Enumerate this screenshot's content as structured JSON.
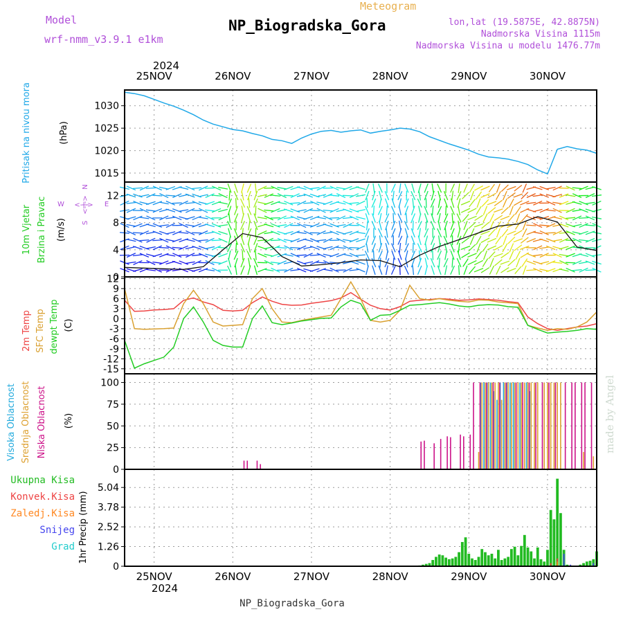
{
  "header": {
    "model_label": "Model",
    "model_name": "wrf-nmm_v3.9.1  e1km",
    "kind": "Meteogram",
    "station": "NP_Biogradska_Gora",
    "coords": "lon,lat (19.5875E, 42.8875N)",
    "elevation": "Nadmorska Visina 1115m",
    "model_elevation": "Nadmorska Visina u modelu 1476.77m",
    "watermark": "made by Angel",
    "footer_station": "NP_Biogradska_Gora"
  },
  "time_axis": {
    "year": "2024",
    "days": [
      "25NOV",
      "26NOV",
      "27NOV",
      "28NOV",
      "29NOV",
      "30NOV"
    ],
    "start": "2024-11-24 15:00",
    "end": "2024-11-30 15:00"
  },
  "colors": {
    "pressure": "#1fa8e8",
    "temp2m": "#ee4444",
    "sfc": "#d9a030",
    "dewpt": "#22cc22",
    "high_cloud": "#22aadd",
    "mid_cloud": "#dda030",
    "low_cloud": "#cc1188",
    "total_precip": "#22bb22",
    "conv_precip": "#ee4444",
    "freezing": "#ff8822",
    "snow": "#4444ee",
    "hail": "#22cccc"
  },
  "chart_data": [
    {
      "type": "line",
      "ylabel_title": "Pritisak na nivou mora",
      "ylabel_unit": "(hPa)",
      "ylim": [
        1013,
        1033.5
      ],
      "yticks": [
        1015,
        1020,
        1025,
        1030
      ],
      "grid": true,
      "x_hours_since_start": [
        0,
        3,
        6,
        9,
        12,
        15,
        18,
        21,
        24,
        27,
        30,
        33,
        36,
        39,
        42,
        45,
        48,
        51,
        54,
        57,
        60,
        63,
        66,
        69,
        72,
        75,
        78,
        81,
        84,
        87,
        90,
        93,
        96,
        99,
        102,
        105,
        108,
        111,
        114,
        117,
        120,
        123,
        126,
        129,
        132,
        135,
        138,
        141,
        144
      ],
      "series": [
        {
          "name": "",
          "values": [
            1033.0,
            1032.7,
            1032.2,
            1031.4,
            1030.6,
            1029.9,
            1029.0,
            1028.0,
            1026.8,
            1025.9,
            1025.3,
            1024.7,
            1024.4,
            1023.8,
            1023.3,
            1022.5,
            1022.2,
            1021.6,
            1022.8,
            1023.7,
            1024.3,
            1024.5,
            1024.1,
            1024.4,
            1024.6,
            1023.9,
            1024.3,
            1024.6,
            1025.0,
            1024.8,
            1024.2,
            1023.1,
            1022.3,
            1021.5,
            1020.8,
            1020.1,
            1019.2,
            1018.6,
            1018.4,
            1018.1,
            1017.6,
            1016.9,
            1015.7,
            1014.8,
            1020.3,
            1020.9,
            1020.4,
            1020.1,
            1019.4
          ]
        }
      ]
    },
    {
      "type": "line",
      "ylabel_title": "10m Vjetar Brzina i Pravac",
      "ylabel_unit": "(m/s)",
      "compass": [
        "N",
        "E",
        "S",
        "W"
      ],
      "ylim": [
        0,
        14
      ],
      "yticks": [
        0,
        4,
        8,
        12
      ],
      "grid": true,
      "x_hours_since_start": [
        0,
        6,
        12,
        18,
        24,
        30,
        36,
        42,
        48,
        54,
        60,
        66,
        72,
        78,
        84,
        90,
        96,
        102,
        108,
        114,
        120,
        126,
        132,
        138,
        144
      ],
      "series": [
        {
          "name": "",
          "values": [
            1.4,
            1.3,
            1.2,
            1.1,
            1.5,
            4.0,
            6.4,
            5.8,
            3.0,
            1.6,
            1.8,
            2.1,
            2.5,
            2.4,
            1.5,
            3.2,
            4.5,
            5.5,
            6.5,
            7.5,
            7.8,
            8.9,
            8.1,
            4.4,
            3.9
          ]
        }
      ],
      "wind_direction_regimes": [
        "E",
        "E",
        "E",
        "S",
        "W",
        "W",
        "W",
        "S",
        "S",
        "S",
        "SW",
        "SW",
        "E",
        "E"
      ]
    },
    {
      "type": "line",
      "ylabel_titles": [
        "2m Temp",
        "SFC Temp",
        "dewpt Temp"
      ],
      "ylabel_unit": "(C)",
      "ylim": [
        -16.5,
        12.5
      ],
      "yticks": [
        -15,
        -12,
        -9,
        -6,
        -3,
        0,
        3,
        6,
        9,
        12
      ],
      "grid": true,
      "x_hours_since_start": [
        0,
        3,
        6,
        9,
        12,
        15,
        18,
        21,
        24,
        27,
        30,
        33,
        36,
        39,
        42,
        45,
        48,
        51,
        54,
        57,
        60,
        63,
        66,
        69,
        72,
        75,
        78,
        81,
        84,
        87,
        90,
        93,
        96,
        99,
        102,
        105,
        108,
        111,
        114,
        117,
        120,
        123,
        126,
        129,
        132,
        135,
        138,
        141,
        144
      ],
      "series": [
        {
          "name": "2m Temp",
          "values": [
            5.5,
            2.2,
            2.3,
            2.6,
            2.7,
            3.0,
            5.5,
            6.2,
            5.0,
            4.2,
            2.5,
            2.3,
            2.5,
            4.8,
            6.5,
            5.2,
            4.3,
            4.0,
            4.1,
            4.6,
            5.0,
            5.4,
            6.2,
            7.8,
            5.8,
            4.0,
            3.0,
            2.6,
            3.6,
            5.2,
            5.5,
            5.7,
            6.0,
            5.8,
            5.5,
            5.6,
            5.9,
            5.7,
            5.5,
            5.1,
            4.8,
            0.5,
            -1.5,
            -3.0,
            -3.5,
            -3.0,
            -2.5,
            -2.2,
            -1.5
          ]
        },
        {
          "name": "SFC Temp",
          "values": [
            9.0,
            -3.0,
            -3.2,
            -3.1,
            -3.0,
            -2.8,
            4.5,
            8.5,
            4.5,
            -1.0,
            -2.2,
            -2.0,
            -1.8,
            6.0,
            9.0,
            3.0,
            -1.0,
            -1.2,
            -0.5,
            0.0,
            0.5,
            1.0,
            6.0,
            11.0,
            6.0,
            -0.5,
            -1.0,
            -0.5,
            2.5,
            10.0,
            6.0,
            5.5,
            6.0,
            5.5,
            5.2,
            5.0,
            5.6,
            5.5,
            5.0,
            4.8,
            4.5,
            -2.0,
            -2.8,
            -3.5,
            -3.0,
            -3.2,
            -2.5,
            -1.0,
            2.0
          ]
        },
        {
          "name": "dewpt Temp",
          "values": [
            -6.5,
            -14.8,
            -13.5,
            -12.5,
            -11.5,
            -8.5,
            0.0,
            3.5,
            -1.0,
            -6.5,
            -8.0,
            -8.5,
            -8.5,
            0.0,
            3.8,
            -1.2,
            -1.8,
            -1.3,
            -0.7,
            -0.3,
            0.1,
            0.2,
            3.5,
            5.5,
            4.5,
            -0.5,
            1.0,
            1.2,
            2.5,
            4.0,
            4.2,
            4.5,
            4.8,
            4.4,
            3.8,
            3.5,
            4.0,
            4.2,
            4.1,
            3.6,
            3.4,
            -2.0,
            -3.2,
            -4.3,
            -4.0,
            -3.8,
            -3.5,
            -3.0,
            -3.2
          ]
        }
      ]
    },
    {
      "type": "bar",
      "ylabel_titles": [
        "Visoka Oblacnost",
        "Srednja Oblacnost",
        "Niska Oblacnost"
      ],
      "ylabel_unit": "(%)",
      "ylim": [
        0,
        110
      ],
      "yticks": [
        0,
        25,
        50,
        75,
        100
      ],
      "grid": true,
      "series": [
        {
          "name": "Visoka Oblacnost",
          "x_hours_since_start": [
            109,
            110,
            111,
            112,
            113,
            114,
            115,
            116,
            117,
            118,
            119,
            121,
            123,
            124
          ],
          "values": [
            100,
            100,
            100,
            100,
            90,
            80,
            100,
            100,
            100,
            100,
            100,
            100,
            100,
            90
          ]
        },
        {
          "name": "Srednja Oblacnost",
          "x_hours_since_start": [
            108,
            109,
            110,
            111,
            112,
            113,
            114,
            115,
            116,
            117,
            118,
            119,
            120,
            121,
            122,
            123,
            124,
            125,
            126,
            128,
            129,
            130,
            131,
            132,
            133,
            140,
            143
          ],
          "values": [
            20,
            100,
            100,
            100,
            100,
            100,
            100,
            80,
            100,
            100,
            100,
            100,
            100,
            100,
            100,
            100,
            100,
            100,
            100,
            100,
            100,
            100,
            100,
            100,
            100,
            20,
            15
          ]
        },
        {
          "name": "Niska Oblacnost",
          "x_hours_since_start": [
            36,
            37,
            40,
            41,
            90,
            91,
            94,
            96,
            98,
            99,
            102,
            103,
            105,
            106,
            108,
            110,
            112,
            114,
            116,
            119,
            121,
            123,
            125,
            127,
            129,
            131,
            134,
            136,
            137,
            139,
            140,
            142
          ],
          "values": [
            10,
            10,
            10,
            6,
            32,
            33,
            30,
            35,
            38,
            37,
            40,
            38,
            40,
            100,
            100,
            100,
            100,
            100,
            100,
            100,
            100,
            100,
            100,
            100,
            100,
            100,
            100,
            100,
            100,
            100,
            100,
            100
          ]
        }
      ]
    },
    {
      "type": "bar",
      "ylabel_unit": "1hr Precip (mm)",
      "legend": [
        "Ukupna Kisa",
        "Konvek.Kisa",
        "Zaledj.Kisa",
        "Snijeg",
        "Grad"
      ],
      "ylim": [
        0,
        6.2
      ],
      "yticks": [
        0,
        1.26,
        2.52,
        3.78,
        5.04
      ],
      "ytick_labels": [
        "0",
        "1.26",
        "2.52",
        "3.78",
        "5.04"
      ],
      "grid": true,
      "series": [
        {
          "name": "Ukupna Kisa",
          "x_hours_since_start": [
            90,
            91,
            92,
            93,
            94,
            95,
            96,
            97,
            98,
            99,
            100,
            101,
            102,
            103,
            104,
            105,
            106,
            107,
            108,
            109,
            110,
            111,
            112,
            113,
            114,
            115,
            116,
            117,
            118,
            119,
            120,
            121,
            122,
            123,
            124,
            125,
            126,
            127,
            128,
            129,
            130,
            131,
            132,
            133,
            134,
            135,
            136,
            137,
            138,
            139,
            140,
            141,
            142,
            143,
            144
          ],
          "values": [
            0.05,
            0.1,
            0.15,
            0.2,
            0.4,
            0.6,
            0.75,
            0.7,
            0.55,
            0.45,
            0.5,
            0.6,
            0.9,
            1.55,
            1.85,
            0.8,
            0.5,
            0.4,
            0.6,
            1.1,
            0.9,
            0.7,
            0.8,
            0.5,
            1.05,
            0.4,
            0.5,
            0.6,
            1.1,
            1.25,
            0.7,
            1.3,
            2.0,
            1.2,
            0.95,
            0.5,
            1.2,
            0.45,
            0.3,
            1.05,
            3.6,
            3.0,
            5.6,
            3.4,
            1.05,
            0.1,
            0.05,
            0.0,
            0.0,
            0.1,
            0.2,
            0.3,
            0.35,
            0.45,
            0.95
          ]
        },
        {
          "name": "Konvek.Kisa",
          "x_hours_since_start": [
            130,
            132
          ],
          "values": [
            0.2,
            0.5
          ]
        },
        {
          "name": "Zaledj.Kisa",
          "x_hours_since_start": [
            132
          ],
          "values": [
            0.3
          ]
        },
        {
          "name": "Snijeg",
          "x_hours_since_start": [
            134,
            136,
            143
          ],
          "values": [
            0.8,
            0.1,
            0.2
          ]
        },
        {
          "name": "Grad",
          "x_hours_since_start": [
            144
          ],
          "values": [
            0.1
          ]
        }
      ]
    }
  ]
}
